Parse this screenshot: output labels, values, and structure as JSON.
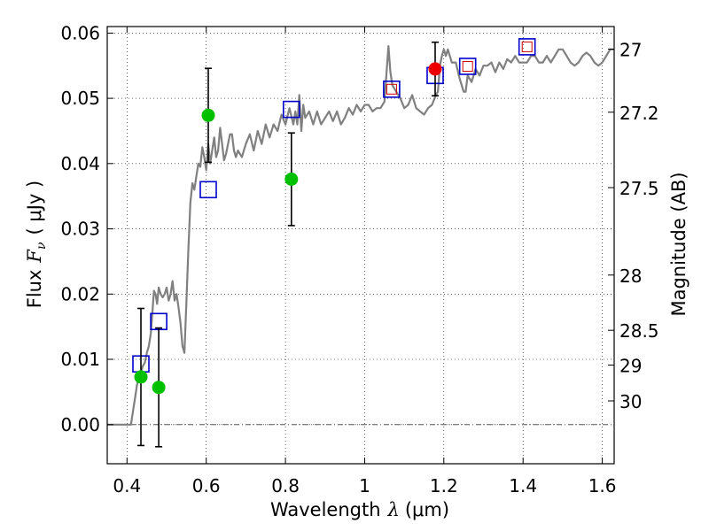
{
  "chart_data": {
    "type": "scatter",
    "xlabel_prefix": "Wavelength",
    "xlabel_var": "λ",
    "xlabel_unit": "(μm)",
    "ylabel_prefix": "Flux",
    "ylabel_var": "F",
    "ylabel_sub": "ν",
    "ylabel_unit": "( μJy )",
    "y2label": "Magnitude (AB)",
    "xlim": [
      0.35,
      1.63
    ],
    "ylim": [
      -0.006,
      0.061
    ],
    "xticks": [
      0.4,
      0.6,
      0.8,
      1.0,
      1.2,
      1.4,
      1.6
    ],
    "xtick_labels": [
      "0.4",
      "0.6",
      "0.8",
      "1",
      "1.2",
      "1.4",
      "1.6"
    ],
    "yticks": [
      0.0,
      0.01,
      0.02,
      0.03,
      0.04,
      0.05,
      0.06
    ],
    "ytick_labels": [
      "0.00",
      "0.01",
      "0.02",
      "0.03",
      "0.04",
      "0.05",
      "0.06"
    ],
    "mag_ticks": [
      "27",
      "27.2",
      "27.5",
      "28",
      "28.5",
      "29",
      "30"
    ],
    "grid": true,
    "colors": {
      "model": "#808080",
      "observed_green": "#00c000",
      "observed_red": "#ee0000",
      "model_box": "#0000cc",
      "model_box_inner": "#cc0000",
      "errorbar": "#000000",
      "zero_line": "#555555"
    },
    "model_spectrum": [
      [
        0.35,
        0.0
      ],
      [
        0.4,
        0.0
      ],
      [
        0.41,
        0.0
      ],
      [
        0.415,
        0.002
      ],
      [
        0.42,
        0.004
      ],
      [
        0.425,
        0.006
      ],
      [
        0.43,
        0.0075
      ],
      [
        0.435,
        0.008
      ],
      [
        0.44,
        0.009
      ],
      [
        0.445,
        0.0095
      ],
      [
        0.45,
        0.011
      ],
      [
        0.455,
        0.012
      ],
      [
        0.46,
        0.014
      ],
      [
        0.465,
        0.018
      ],
      [
        0.468,
        0.0205
      ],
      [
        0.472,
        0.02
      ],
      [
        0.476,
        0.0185
      ],
      [
        0.48,
        0.021
      ],
      [
        0.485,
        0.02
      ],
      [
        0.49,
        0.0195
      ],
      [
        0.495,
        0.02
      ],
      [
        0.5,
        0.021
      ],
      [
        0.505,
        0.019
      ],
      [
        0.51,
        0.02
      ],
      [
        0.515,
        0.022
      ],
      [
        0.52,
        0.019
      ],
      [
        0.525,
        0.02
      ],
      [
        0.53,
        0.018
      ],
      [
        0.535,
        0.0155
      ],
      [
        0.54,
        0.012
      ],
      [
        0.545,
        0.011
      ],
      [
        0.55,
        0.019
      ],
      [
        0.555,
        0.027
      ],
      [
        0.56,
        0.034
      ],
      [
        0.565,
        0.037
      ],
      [
        0.57,
        0.036
      ],
      [
        0.575,
        0.038
      ],
      [
        0.58,
        0.04
      ],
      [
        0.585,
        0.0395
      ],
      [
        0.59,
        0.0425
      ],
      [
        0.595,
        0.041
      ],
      [
        0.6,
        0.039
      ],
      [
        0.605,
        0.043
      ],
      [
        0.61,
        0.04
      ],
      [
        0.615,
        0.042
      ],
      [
        0.62,
        0.044
      ],
      [
        0.625,
        0.041
      ],
      [
        0.63,
        0.042
      ],
      [
        0.635,
        0.0455
      ],
      [
        0.64,
        0.043
      ],
      [
        0.645,
        0.0405
      ],
      [
        0.65,
        0.0415
      ],
      [
        0.655,
        0.043
      ],
      [
        0.66,
        0.0445
      ],
      [
        0.665,
        0.0445
      ],
      [
        0.67,
        0.042
      ],
      [
        0.675,
        0.041
      ],
      [
        0.68,
        0.042
      ],
      [
        0.69,
        0.041
      ],
      [
        0.7,
        0.043
      ],
      [
        0.71,
        0.0445
      ],
      [
        0.72,
        0.042
      ],
      [
        0.73,
        0.045
      ],
      [
        0.74,
        0.043
      ],
      [
        0.75,
        0.046
      ],
      [
        0.76,
        0.044
      ],
      [
        0.77,
        0.046
      ],
      [
        0.78,
        0.045
      ],
      [
        0.79,
        0.0475
      ],
      [
        0.8,
        0.046
      ],
      [
        0.81,
        0.0485
      ],
      [
        0.82,
        0.046
      ],
      [
        0.825,
        0.048
      ],
      [
        0.83,
        0.046
      ],
      [
        0.835,
        0.0505
      ],
      [
        0.84,
        0.045
      ],
      [
        0.845,
        0.049
      ],
      [
        0.85,
        0.047
      ],
      [
        0.86,
        0.048
      ],
      [
        0.87,
        0.046
      ],
      [
        0.88,
        0.048
      ],
      [
        0.89,
        0.046
      ],
      [
        0.9,
        0.047
      ],
      [
        0.91,
        0.048
      ],
      [
        0.92,
        0.0465
      ],
      [
        0.93,
        0.048
      ],
      [
        0.94,
        0.046
      ],
      [
        0.95,
        0.047
      ],
      [
        0.96,
        0.0485
      ],
      [
        0.97,
        0.0475
      ],
      [
        0.98,
        0.049
      ],
      [
        0.99,
        0.048
      ],
      [
        1.0,
        0.049
      ],
      [
        1.01,
        0.049
      ],
      [
        1.02,
        0.048
      ],
      [
        1.03,
        0.0485
      ],
      [
        1.04,
        0.0485
      ],
      [
        1.05,
        0.0495
      ],
      [
        1.06,
        0.058
      ],
      [
        1.065,
        0.054
      ],
      [
        1.07,
        0.052
      ],
      [
        1.08,
        0.051
      ],
      [
        1.09,
        0.05
      ],
      [
        1.1,
        0.0485
      ],
      [
        1.11,
        0.049
      ],
      [
        1.12,
        0.0505
      ],
      [
        1.13,
        0.0485
      ],
      [
        1.14,
        0.048
      ],
      [
        1.15,
        0.0475
      ],
      [
        1.16,
        0.0485
      ],
      [
        1.17,
        0.049
      ],
      [
        1.18,
        0.0505
      ],
      [
        1.185,
        0.051
      ],
      [
        1.19,
        0.055
      ],
      [
        1.195,
        0.0565
      ],
      [
        1.2,
        0.0575
      ],
      [
        1.205,
        0.0565
      ],
      [
        1.21,
        0.0575
      ],
      [
        1.22,
        0.0555
      ],
      [
        1.23,
        0.0555
      ],
      [
        1.24,
        0.053
      ],
      [
        1.25,
        0.051
      ],
      [
        1.255,
        0.051
      ],
      [
        1.26,
        0.0535
      ],
      [
        1.27,
        0.0525
      ],
      [
        1.28,
        0.0545
      ],
      [
        1.29,
        0.0535
      ],
      [
        1.3,
        0.055
      ],
      [
        1.31,
        0.055
      ],
      [
        1.32,
        0.0555
      ],
      [
        1.33,
        0.054
      ],
      [
        1.34,
        0.0555
      ],
      [
        1.35,
        0.0545
      ],
      [
        1.36,
        0.056
      ],
      [
        1.37,
        0.0555
      ],
      [
        1.38,
        0.0565
      ],
      [
        1.39,
        0.0555
      ],
      [
        1.4,
        0.0555
      ],
      [
        1.41,
        0.0555
      ],
      [
        1.42,
        0.0565
      ],
      [
        1.43,
        0.0565
      ],
      [
        1.44,
        0.0555
      ],
      [
        1.45,
        0.0555
      ],
      [
        1.46,
        0.0565
      ],
      [
        1.47,
        0.0555
      ],
      [
        1.48,
        0.0565
      ],
      [
        1.49,
        0.0575
      ],
      [
        1.5,
        0.0575
      ],
      [
        1.51,
        0.0565
      ],
      [
        1.52,
        0.0555
      ],
      [
        1.53,
        0.055
      ],
      [
        1.54,
        0.0555
      ],
      [
        1.55,
        0.0565
      ],
      [
        1.56,
        0.057
      ],
      [
        1.57,
        0.0565
      ],
      [
        1.58,
        0.0555
      ],
      [
        1.59,
        0.055
      ],
      [
        1.6,
        0.0555
      ],
      [
        1.61,
        0.0565
      ],
      [
        1.62,
        0.0575
      ],
      [
        1.63,
        0.0575
      ]
    ],
    "model_photometry": [
      {
        "x": 0.435,
        "y": 0.0093,
        "inner": false
      },
      {
        "x": 0.48,
        "y": 0.0158,
        "inner": false
      },
      {
        "x": 0.605,
        "y": 0.036,
        "inner": false
      },
      {
        "x": 0.815,
        "y": 0.0483,
        "inner": false
      },
      {
        "x": 1.068,
        "y": 0.0514,
        "inner": true
      },
      {
        "x": 1.178,
        "y": 0.0535,
        "inner": false
      },
      {
        "x": 1.26,
        "y": 0.0549,
        "inner": true
      },
      {
        "x": 1.41,
        "y": 0.0579,
        "inner": true
      }
    ],
    "observed": [
      {
        "x": 0.435,
        "y": 0.0073,
        "err": 0.0105,
        "color": "green"
      },
      {
        "x": 0.48,
        "y": 0.0057,
        "err": 0.0091,
        "color": "green"
      },
      {
        "x": 0.605,
        "y": 0.0474,
        "err": 0.0072,
        "color": "green"
      },
      {
        "x": 0.815,
        "y": 0.0376,
        "err": 0.0071,
        "color": "green"
      },
      {
        "x": 1.178,
        "y": 0.0545,
        "err": 0.0041,
        "color": "red"
      }
    ]
  }
}
